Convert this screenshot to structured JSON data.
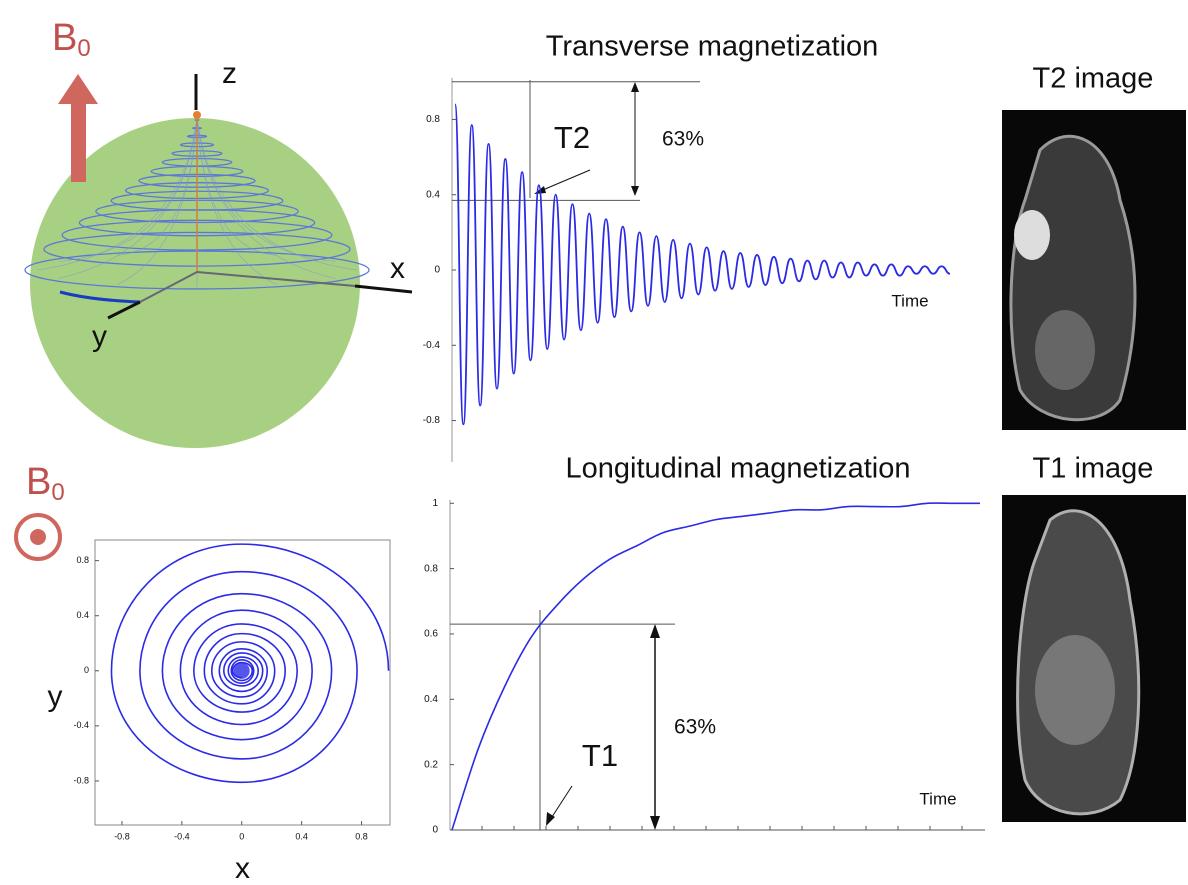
{
  "figure": {
    "b0_top": {
      "base": "B",
      "sub": "0"
    },
    "axis_z": "z",
    "axis_x": "x",
    "axis_y": "y",
    "b0_bottom": {
      "base": "B",
      "sub": "0"
    },
    "t2_image": "T2 image",
    "t1_image": "T1 image"
  },
  "chart_data": [
    {
      "type": "line",
      "title": "Transverse magnetization",
      "color": "#2b2be6",
      "values": [
        0.88,
        -0.82,
        0.77,
        -0.72,
        0.67,
        -0.63,
        0.59,
        -0.55,
        0.52,
        -0.48,
        0.45,
        -0.42,
        0.4,
        -0.37,
        0.35,
        -0.32,
        0.3,
        -0.28,
        0.27,
        -0.25,
        0.23,
        -0.22,
        0.2,
        -0.19,
        0.18,
        -0.17,
        0.16,
        -0.15,
        0.14,
        -0.13,
        0.12,
        -0.11,
        0.1,
        -0.1,
        0.09,
        -0.09,
        0.08,
        -0.08,
        0.07,
        -0.07,
        0.06,
        -0.06,
        0.05,
        -0.05,
        0.05,
        -0.04,
        0.04,
        -0.04,
        0.04,
        -0.03,
        0.03,
        -0.03,
        0.03,
        -0.03,
        0.02,
        -0.02,
        0.02,
        -0.02,
        0.02,
        -0.02
      ],
      "ylim": [
        -1.02,
        1.02
      ],
      "yticks": [
        0.8,
        0.4,
        0,
        -0.4,
        -0.8
      ],
      "hlines": [
        1,
        0.37
      ],
      "marker_label": "T2",
      "percent_label": "63%",
      "xlabel": "Time"
    },
    {
      "type": "line",
      "title": "Longitudinal magnetization",
      "color": "#2b2be6",
      "values": [
        0,
        0.25,
        0.44,
        0.59,
        0.69,
        0.77,
        0.83,
        0.87,
        0.91,
        0.93,
        0.95,
        0.96,
        0.97,
        0.98,
        0.98,
        0.99,
        0.99,
        0.99,
        1.0,
        1.0,
        1.0
      ],
      "ylim": [
        0,
        1.01
      ],
      "yticks": [
        0,
        0.2,
        0.4,
        0.6,
        0.8,
        1
      ],
      "hlines": [
        0.63
      ],
      "marker_label": "T1",
      "percent_label": "63%",
      "xlabel": "Time"
    },
    {
      "type": "line",
      "color": "#2b2be6",
      "xlabel": "x",
      "ylabel": "y",
      "x": [
        0.98,
        0,
        -0.87,
        0,
        0.77,
        0,
        -0.68,
        0,
        0.6,
        0,
        -0.53,
        0,
        0.47,
        0,
        -0.41,
        0,
        0.37,
        0,
        -0.32,
        0,
        0.29,
        0,
        -0.25,
        0,
        0.22,
        0,
        -0.2,
        0,
        0.17,
        0,
        -0.15,
        0,
        0.14,
        0,
        -0.12,
        0,
        0.11,
        0,
        -0.09,
        0,
        0.08,
        0,
        -0.07,
        0,
        0.07,
        0,
        -0.06,
        0
      ],
      "values": [
        0,
        0.92,
        0,
        -0.81,
        0,
        0.72,
        0,
        -0.64,
        0,
        0.56,
        0,
        -0.5,
        0,
        0.44,
        0,
        -0.39,
        0,
        0.34,
        0,
        -0.3,
        0,
        0.27,
        0,
        -0.24,
        0,
        0.21,
        0,
        -0.19,
        0,
        0.16,
        0,
        -0.15,
        0,
        0.13,
        0,
        -0.11,
        0,
        0.1,
        0,
        -0.09,
        0,
        0.08,
        0,
        -0.07,
        0,
        0.06,
        0,
        -0.05
      ],
      "xlim": [
        -0.98,
        0.99
      ],
      "ylim": [
        -1.12,
        0.95
      ],
      "xticks": [
        -0.8,
        -0.4,
        0,
        0.4,
        0.8
      ],
      "yticks": [
        0.8,
        0.4,
        0,
        -0.4,
        -0.8
      ]
    }
  ]
}
